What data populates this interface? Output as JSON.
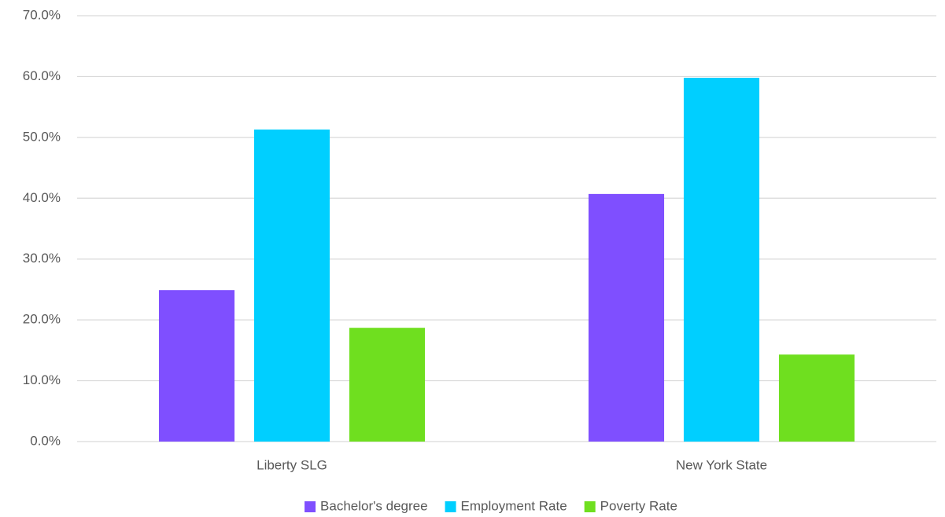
{
  "chart_data": {
    "type": "bar",
    "categories": [
      "Liberty SLG",
      "New York State"
    ],
    "series": [
      {
        "name": "Bachelor's degree",
        "color": "#7f4fff",
        "values": [
          24.9,
          40.7
        ]
      },
      {
        "name": "Employment Rate",
        "color": "#00cfff",
        "values": [
          51.3,
          59.8
        ]
      },
      {
        "name": "Poverty Rate",
        "color": "#6fdf1f",
        "values": [
          18.7,
          14.3
        ]
      }
    ],
    "ylim": [
      0,
      70
    ],
    "yticks": [
      {
        "value": 0,
        "label": "0.0%"
      },
      {
        "value": 10,
        "label": "10.0%"
      },
      {
        "value": 20,
        "label": "20.0%"
      },
      {
        "value": 30,
        "label": "30.0%"
      },
      {
        "value": 40,
        "label": "40.0%"
      },
      {
        "value": 50,
        "label": "50.0%"
      },
      {
        "value": 60,
        "label": "60.0%"
      },
      {
        "value": 70,
        "label": "70.0%"
      }
    ],
    "grid": true,
    "legend": "bottom"
  }
}
